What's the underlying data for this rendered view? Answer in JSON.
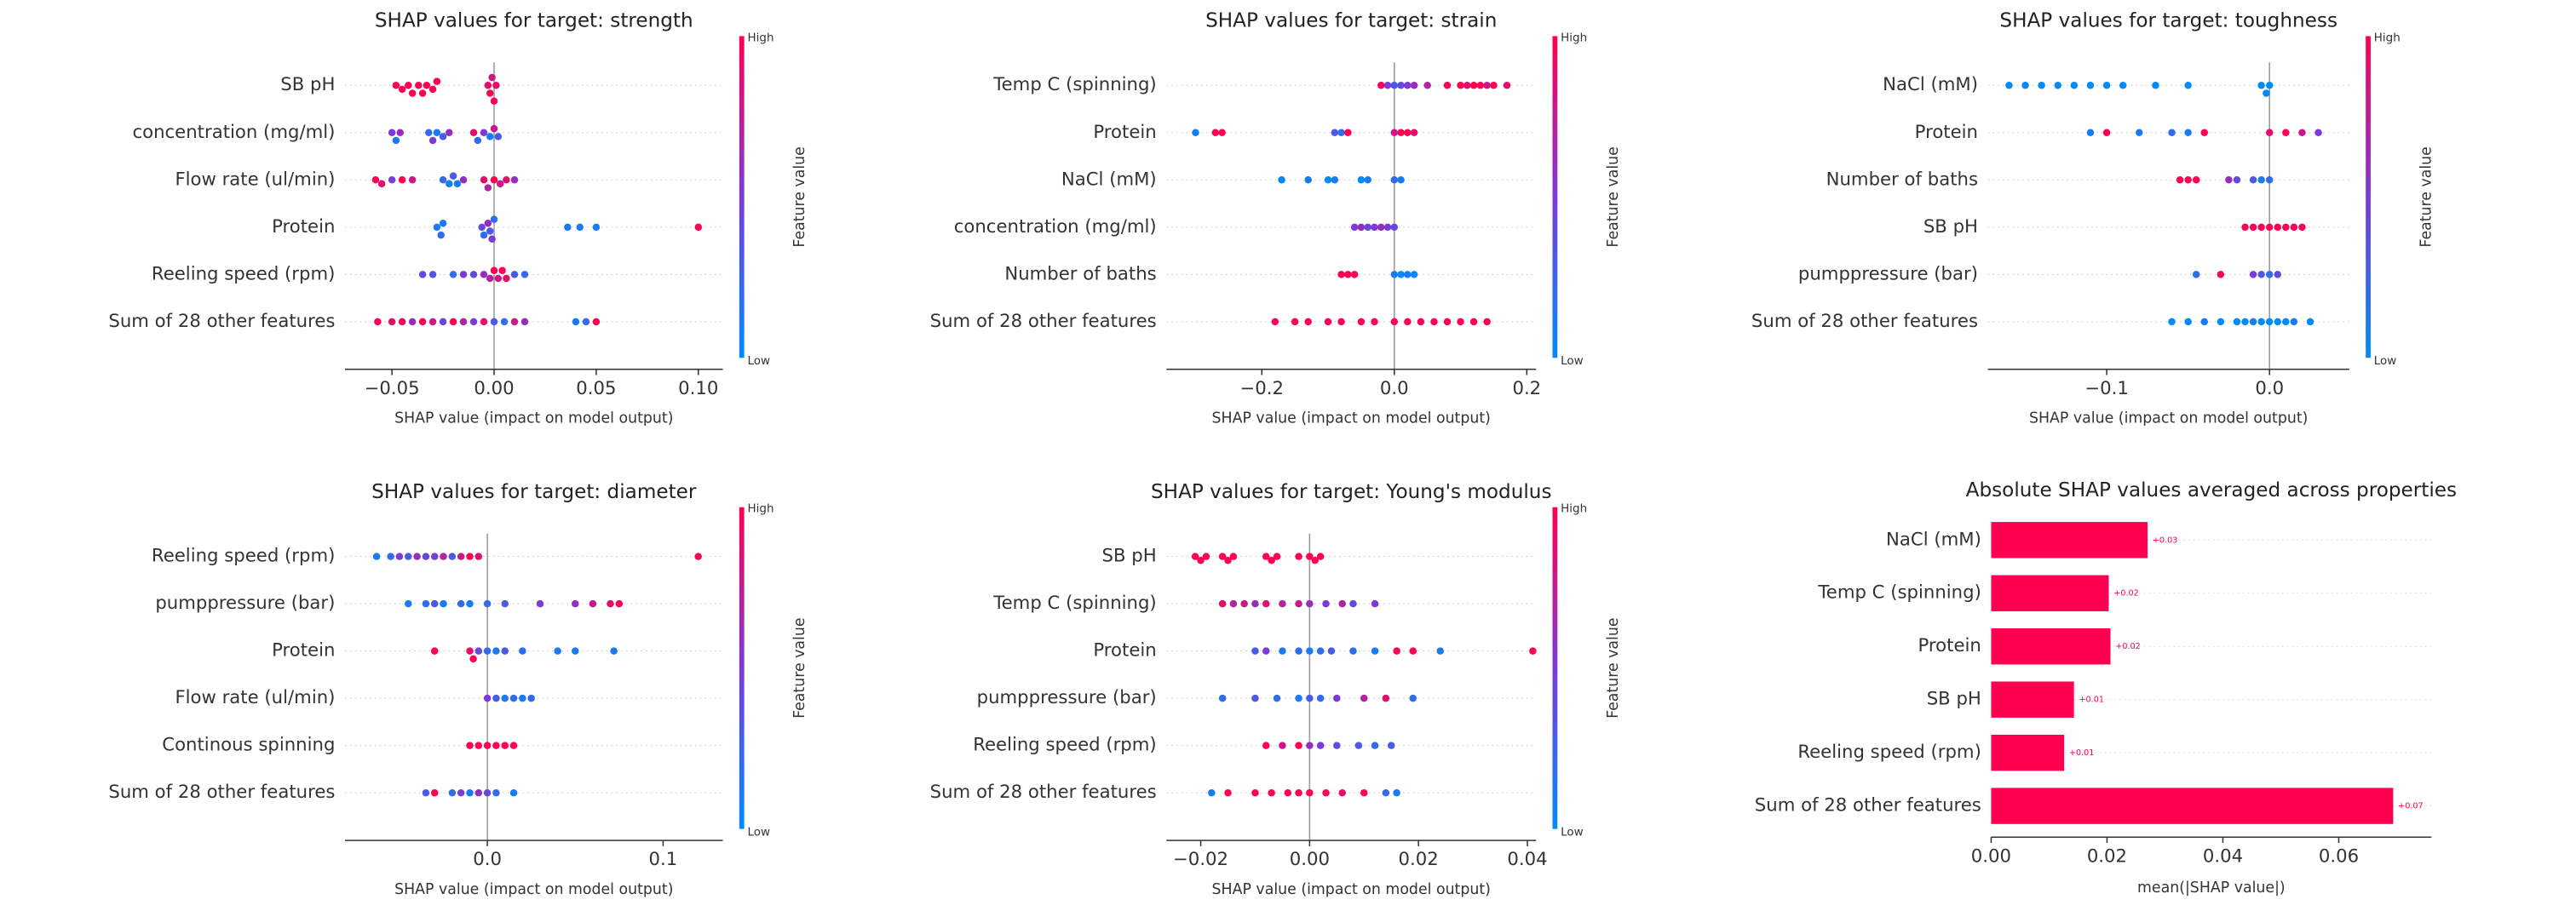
{
  "chart_data": [
    {
      "type": "beeswarm",
      "title": "SHAP values for target: strength",
      "xlabel": "SHAP value (impact on model output)",
      "colorbar_label": "Feature value",
      "colorbar_high": "High",
      "colorbar_low": "Low",
      "xlim": [
        -0.073,
        0.112
      ],
      "xticks": [
        {
          "value": -0.05,
          "label": "−0.05"
        },
        {
          "value": 0,
          "label": "0.00"
        },
        {
          "value": 0.05,
          "label": "0.05"
        },
        {
          "value": 0.1,
          "label": "0.10"
        }
      ],
      "rows": [
        {
          "name": "SB pH",
          "values": [
            -0.048,
            -0.045,
            -0.042,
            -0.04,
            -0.037,
            -0.035,
            -0.033,
            -0.03,
            -0.028,
            -0.003,
            -0.002,
            -0.001,
            0,
            0.001
          ],
          "feature_values": [
            1,
            1,
            1,
            1,
            1,
            1,
            1,
            1,
            1,
            0.9,
            1,
            0.8,
            1,
            0.9
          ]
        },
        {
          "name": "concentration (mg/ml)",
          "values": [
            -0.05,
            -0.048,
            -0.046,
            -0.032,
            -0.03,
            -0.028,
            -0.025,
            -0.022,
            -0.01,
            -0.008,
            -0.005,
            -0.002,
            0,
            0.002
          ],
          "feature_values": [
            0.5,
            0.1,
            0.6,
            0.2,
            0.5,
            0.1,
            0.3,
            0.6,
            0.9,
            0.2,
            0.5,
            0.1,
            0.8,
            0.3
          ]
        },
        {
          "name": "Flow rate (ul/min)",
          "values": [
            -0.058,
            -0.055,
            -0.05,
            -0.045,
            -0.04,
            -0.025,
            -0.022,
            -0.02,
            -0.018,
            -0.015,
            -0.005,
            -0.003,
            0,
            0.003,
            0.006,
            0.01
          ],
          "feature_values": [
            1,
            0.9,
            0.5,
            1,
            0.8,
            0.2,
            0.1,
            0.3,
            0.1,
            0.6,
            0.9,
            0.7,
            1,
            0.8,
            0.9,
            0.6
          ]
        },
        {
          "name": "Protein",
          "values": [
            -0.028,
            -0.026,
            -0.025,
            -0.006,
            -0.005,
            -0.003,
            -0.002,
            -0.001,
            0,
            0.036,
            0.042,
            0.05,
            0.1
          ],
          "feature_values": [
            0.1,
            0.2,
            0.1,
            0.4,
            0.2,
            0.6,
            0.3,
            0.5,
            0.2,
            0.1,
            0.1,
            0.1,
            1
          ]
        },
        {
          "name": "Reeling speed (rpm)",
          "values": [
            -0.035,
            -0.03,
            -0.02,
            -0.015,
            -0.01,
            -0.005,
            -0.002,
            0,
            0.002,
            0.004,
            0.006,
            0.01,
            0.015
          ],
          "feature_values": [
            0.4,
            0.3,
            0.2,
            0.5,
            0.4,
            0.6,
            0.7,
            1,
            0.8,
            1,
            0.9,
            0.3,
            0.2
          ]
        },
        {
          "name": "Sum of 28 other features",
          "values": [
            -0.057,
            -0.05,
            -0.045,
            -0.04,
            -0.035,
            -0.03,
            -0.025,
            -0.02,
            -0.015,
            -0.01,
            -0.005,
            0,
            0.005,
            0.01,
            0.015,
            0.04,
            0.045,
            0.05
          ],
          "feature_values": [
            1,
            0.9,
            1,
            0.6,
            1,
            0.8,
            0.4,
            1,
            0.7,
            0.5,
            0.9,
            0.3,
            0.2,
            0.8,
            0.6,
            0.1,
            0.2,
            1
          ]
        }
      ]
    },
    {
      "type": "beeswarm",
      "title": "SHAP values for target: strain",
      "xlabel": "SHAP value (impact on model output)",
      "colorbar_label": "Feature value",
      "colorbar_high": "High",
      "colorbar_low": "Low",
      "xlim": [
        -0.344,
        0.214
      ],
      "xticks": [
        {
          "value": -0.2,
          "label": "−0.2"
        },
        {
          "value": 0,
          "label": "0.0"
        },
        0.2
      ],
      "rows": [
        {
          "name": "Temp C (spinning)",
          "values": [
            -0.02,
            -0.01,
            0,
            0.01,
            0.02,
            0.03,
            0.05,
            0.08,
            0.1,
            0.11,
            0.12,
            0.13,
            0.14,
            0.15,
            0.17
          ],
          "feature_values": [
            1,
            0.5,
            0.3,
            0.4,
            0.5,
            0.6,
            0.7,
            1,
            1,
            0.9,
            1,
            1,
            0.8,
            1,
            0.9
          ]
        },
        {
          "name": "Protein",
          "values": [
            -0.3,
            -0.27,
            -0.26,
            -0.09,
            -0.08,
            -0.07,
            0,
            0.01,
            0.02,
            0.03
          ],
          "feature_values": [
            0.1,
            1,
            1,
            0.3,
            0.2,
            1,
            0.8,
            1,
            1,
            0.9
          ]
        },
        {
          "name": "NaCl (mM)",
          "values": [
            -0.17,
            -0.13,
            -0.1,
            -0.09,
            -0.05,
            -0.04,
            0,
            0.01
          ],
          "feature_values": [
            0,
            0.1,
            0,
            0.1,
            0,
            0.1,
            0.2,
            0.1
          ]
        },
        {
          "name": "concentration (mg/ml)",
          "values": [
            -0.06,
            -0.05,
            -0.04,
            -0.03,
            -0.02,
            -0.01,
            0
          ],
          "feature_values": [
            0.5,
            0.6,
            0.4,
            0.5,
            0.6,
            0.5,
            0.4
          ]
        },
        {
          "name": "Number of baths",
          "values": [
            -0.08,
            -0.07,
            -0.06,
            0,
            0.01,
            0.02,
            0.03
          ],
          "feature_values": [
            1,
            1,
            1,
            0.1,
            0,
            0.1,
            0
          ]
        },
        {
          "name": "Sum of 28 other features",
          "values": [
            -0.18,
            -0.15,
            -0.13,
            -0.1,
            -0.08,
            -0.05,
            -0.03,
            0,
            0.02,
            0.04,
            0.06,
            0.08,
            0.1,
            0.12,
            0.14
          ],
          "feature_values": [
            1,
            1,
            1,
            1,
            1,
            1,
            1,
            1,
            1,
            1,
            1,
            1,
            1,
            1,
            1
          ]
        }
      ]
    },
    {
      "type": "beeswarm",
      "title": "SHAP values for target: toughness",
      "xlabel": "SHAP value (impact on model output)",
      "colorbar_label": "Feature value",
      "colorbar_high": "High",
      "colorbar_low": "Low",
      "xlim": [
        -0.173,
        0.049
      ],
      "xticks": [
        {
          "value": -0.1,
          "label": "−0.1"
        },
        {
          "value": 0,
          "label": "0.0"
        }
      ],
      "rows": [
        {
          "name": "NaCl (mM)",
          "values": [
            -0.16,
            -0.15,
            -0.14,
            -0.13,
            -0.12,
            -0.11,
            -0.1,
            -0.09,
            -0.07,
            -0.05,
            -0.005,
            -0.002,
            0
          ],
          "feature_values": [
            0,
            0,
            0,
            0,
            0,
            0,
            0,
            0,
            0,
            0,
            0,
            0,
            0
          ]
        },
        {
          "name": "Protein",
          "values": [
            -0.11,
            -0.1,
            -0.08,
            -0.06,
            -0.05,
            -0.04,
            0,
            0.01,
            0.02,
            0.03
          ],
          "feature_values": [
            0.1,
            1,
            0.1,
            0.2,
            0.1,
            1,
            0.9,
            1,
            0.8,
            0.5
          ]
        },
        {
          "name": "Number of baths",
          "values": [
            -0.055,
            -0.05,
            -0.045,
            -0.025,
            -0.02,
            -0.01,
            -0.005,
            0
          ],
          "feature_values": [
            1,
            1,
            1,
            0.6,
            0.4,
            0.3,
            0.1,
            0.2
          ]
        },
        {
          "name": "SB pH",
          "values": [
            -0.015,
            -0.01,
            -0.005,
            0,
            0.005,
            0.01,
            0.015,
            0.02
          ],
          "feature_values": [
            1,
            1,
            1,
            1,
            1,
            1,
            1,
            1
          ]
        },
        {
          "name": "pumppressure (bar)",
          "values": [
            -0.045,
            -0.03,
            -0.01,
            -0.005,
            0,
            0.005
          ],
          "feature_values": [
            0.2,
            1,
            0.5,
            0.3,
            0.2,
            0.4
          ]
        },
        {
          "name": "Sum of 28 other features",
          "values": [
            -0.06,
            -0.05,
            -0.04,
            -0.03,
            -0.02,
            -0.015,
            -0.01,
            -0.005,
            0,
            0.005,
            0.01,
            0.015,
            0.025
          ],
          "feature_values": [
            0,
            0,
            0.1,
            0,
            0,
            0,
            0.1,
            0,
            0,
            0,
            0,
            0.1,
            0
          ]
        }
      ]
    },
    {
      "type": "beeswarm",
      "title": "SHAP values for target: diameter",
      "xlabel": "SHAP value (impact on model output)",
      "colorbar_label": "Feature value",
      "colorbar_high": "High",
      "colorbar_low": "Low",
      "xlim": [
        -0.081,
        0.134
      ],
      "xticks": [
        {
          "value": 0,
          "label": "0.0"
        },
        0.1
      ],
      "rows": [
        {
          "name": "Reeling speed (rpm)",
          "values": [
            -0.063,
            -0.055,
            -0.05,
            -0.045,
            -0.04,
            -0.035,
            -0.03,
            -0.025,
            -0.02,
            -0.015,
            -0.01,
            -0.005,
            0.12
          ],
          "feature_values": [
            0.1,
            0.2,
            0.5,
            0.3,
            0.6,
            0.4,
            0.5,
            0.7,
            0.3,
            0.8,
            1,
            0.9,
            1
          ]
        },
        {
          "name": "pumppressure (bar)",
          "values": [
            -0.045,
            -0.035,
            -0.03,
            -0.025,
            -0.015,
            -0.01,
            0,
            0.01,
            0.03,
            0.05,
            0.06,
            0.07,
            0.075
          ],
          "feature_values": [
            0.1,
            0.2,
            0.3,
            0.1,
            0.2,
            0.1,
            0.2,
            0.3,
            0.5,
            0.6,
            0.8,
            0.9,
            1
          ]
        },
        {
          "name": "Protein",
          "values": [
            -0.03,
            -0.01,
            -0.008,
            -0.005,
            0,
            0.005,
            0.01,
            0.02,
            0.04,
            0.05,
            0.072
          ],
          "feature_values": [
            1,
            0.9,
            1,
            0.4,
            0.2,
            0.1,
            0.3,
            0.2,
            0.1,
            0.1,
            0.1
          ]
        },
        {
          "name": "Flow rate (ul/min)",
          "values": [
            0,
            0.005,
            0.01,
            0.015,
            0.02,
            0.025
          ],
          "feature_values": [
            0.5,
            0.3,
            0.1,
            0.2,
            0.1,
            0.2
          ]
        },
        {
          "name": "Continous spinning",
          "values": [
            -0.01,
            -0.005,
            0,
            0.005,
            0.01,
            0.015
          ],
          "feature_values": [
            1,
            1,
            1,
            1,
            1,
            1
          ]
        },
        {
          "name": "Sum of 28 other features",
          "values": [
            -0.035,
            -0.03,
            -0.02,
            -0.015,
            -0.01,
            -0.005,
            0,
            0.005,
            0.015
          ],
          "feature_values": [
            0.3,
            1,
            0.2,
            0.5,
            0.1,
            0.6,
            0.4,
            0.2,
            0.1
          ]
        }
      ]
    },
    {
      "type": "beeswarm",
      "title": "SHAP values for target: Young's modulus",
      "xlabel": "SHAP value (impact on model output)",
      "colorbar_label": "Feature value",
      "colorbar_high": "High",
      "colorbar_low": "Low",
      "xlim": [
        -0.0263,
        0.0416
      ],
      "xticks": [
        {
          "value": -0.02,
          "label": "−0.02"
        },
        {
          "value": 0,
          "label": "0.00"
        },
        0.02,
        0.04
      ],
      "rows": [
        {
          "name": "SB pH",
          "values": [
            -0.021,
            -0.02,
            -0.019,
            -0.016,
            -0.015,
            -0.014,
            -0.008,
            -0.007,
            -0.006,
            -0.002,
            0,
            0.001,
            0.002
          ],
          "feature_values": [
            1,
            1,
            1,
            1,
            1,
            1,
            1,
            1,
            1,
            1,
            1,
            1,
            1
          ]
        },
        {
          "name": "Temp C (spinning)",
          "values": [
            -0.016,
            -0.014,
            -0.012,
            -0.01,
            -0.008,
            -0.005,
            -0.002,
            0,
            0.003,
            0.006,
            0.008,
            0.012
          ],
          "feature_values": [
            0.9,
            0.7,
            0.8,
            0.6,
            0.9,
            0.7,
            0.8,
            0.6,
            0.5,
            0.7,
            0.4,
            0.5
          ]
        },
        {
          "name": "Protein",
          "values": [
            -0.01,
            -0.008,
            -0.005,
            -0.002,
            0,
            0.002,
            0.004,
            0.008,
            0.012,
            0.016,
            0.019,
            0.024,
            0.041
          ],
          "feature_values": [
            0.3,
            0.5,
            0.1,
            0.2,
            0.1,
            0.2,
            0.3,
            0.2,
            0.1,
            1,
            1,
            0.1,
            1
          ]
        },
        {
          "name": "pumppressure (bar)",
          "values": [
            -0.016,
            -0.01,
            -0.006,
            -0.002,
            0,
            0.002,
            0.005,
            0.01,
            0.014,
            0.019
          ],
          "feature_values": [
            0.2,
            0.3,
            0.2,
            0.1,
            0.3,
            0.2,
            0.5,
            0.7,
            0.9,
            0.2
          ]
        },
        {
          "name": "Reeling speed (rpm)",
          "values": [
            -0.008,
            -0.005,
            -0.002,
            0,
            0.002,
            0.005,
            0.009,
            0.012,
            0.015
          ],
          "feature_values": [
            1,
            0.8,
            1,
            0.6,
            0.5,
            0.4,
            0.3,
            0.2,
            0.3
          ]
        },
        {
          "name": "Sum of 28 other features",
          "values": [
            -0.018,
            -0.015,
            -0.01,
            -0.007,
            -0.004,
            -0.002,
            0,
            0.003,
            0.006,
            0.01,
            0.014,
            0.016
          ],
          "feature_values": [
            0.1,
            1,
            1,
            1,
            1,
            1,
            1,
            1,
            0.9,
            1,
            0.2,
            0.1
          ]
        }
      ]
    },
    {
      "type": "bar_h",
      "title": "Absolute SHAP values averaged across properties",
      "xlabel": "mean(|SHAP value|)",
      "color": "#ff0051",
      "xlim": [
        0,
        0.076
      ],
      "xticks": [
        {
          "value": 0,
          "label": "0.00"
        },
        0.02,
        0.04,
        0.06
      ],
      "categories": [
        "NaCl (mM)",
        "Temp C (spinning)",
        "Protein",
        "SB pH",
        "Reeling speed (rpm)",
        "Sum of 28 other features"
      ],
      "values": [
        0.027,
        0.0203,
        0.0206,
        0.0143,
        0.0126,
        0.0694
      ],
      "value_labels": [
        "+0.03",
        "+0.02",
        "+0.02",
        "+0.01",
        "+0.01",
        "+0.07"
      ]
    }
  ]
}
